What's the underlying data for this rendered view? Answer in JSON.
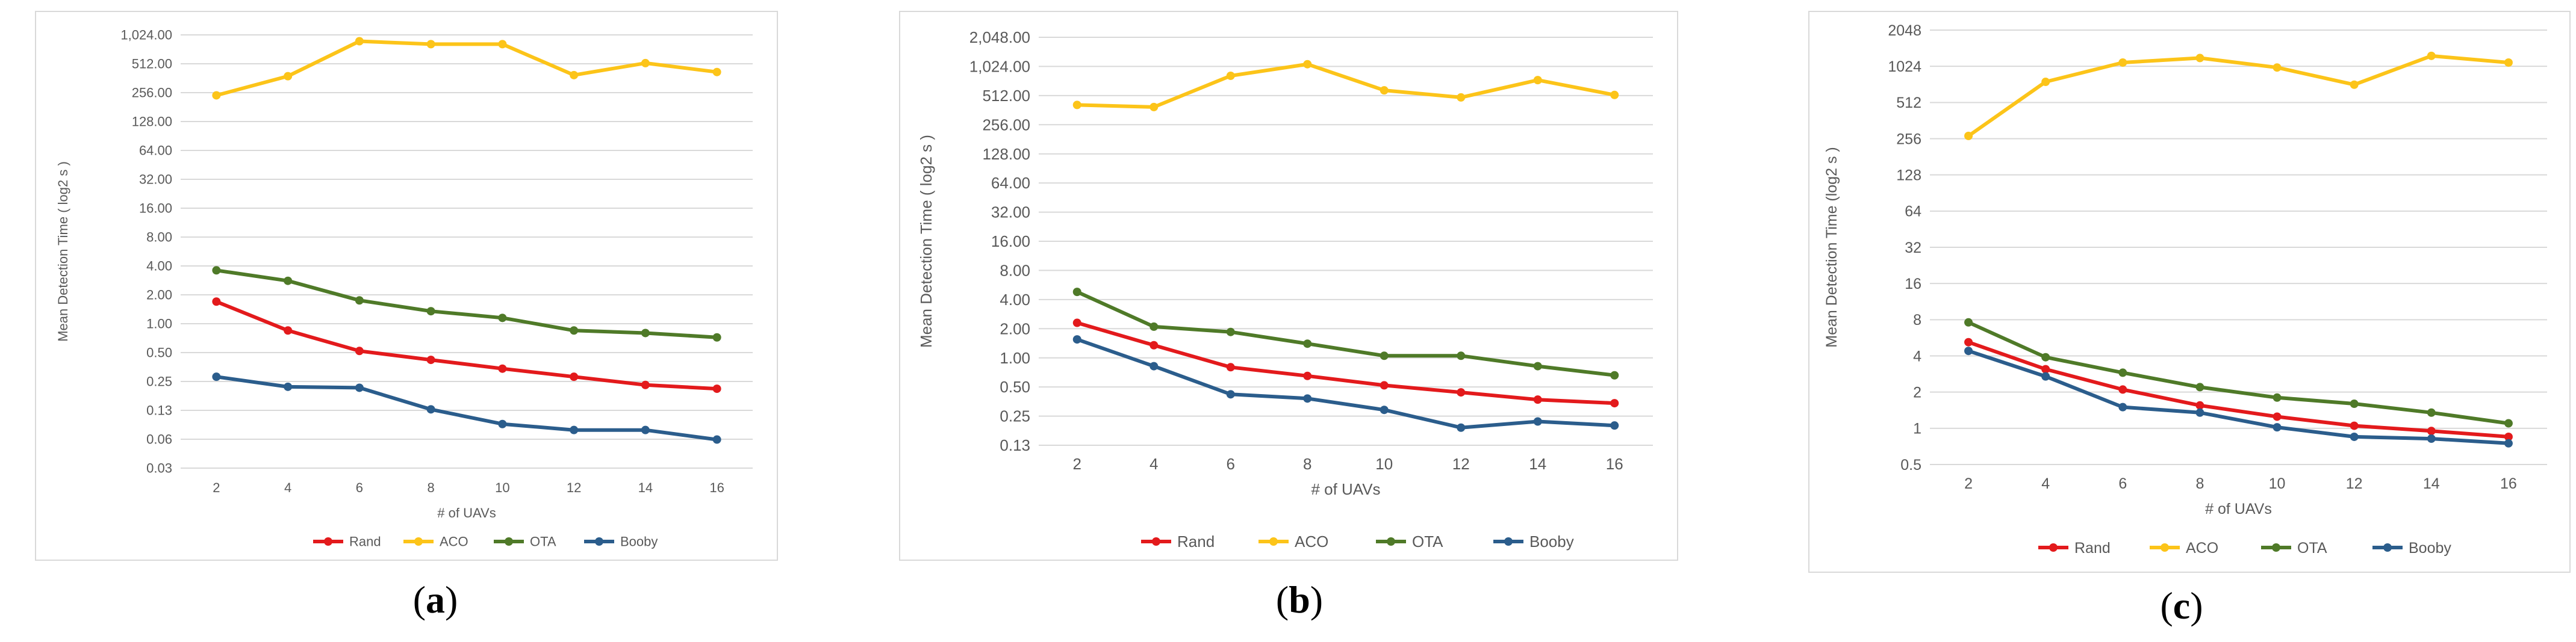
{
  "chart_data": [
    {
      "type": "line",
      "panel_label": "a",
      "ylabel": "Mean Detection Time ( log2 s )",
      "xlabel": "# of UAVs",
      "x": [
        2,
        4,
        6,
        8,
        10,
        12,
        14,
        16
      ],
      "ytick_labels": [
        "0.03",
        "0.06",
        "0.13",
        "0.25",
        "0.50",
        "1.00",
        "2.00",
        "4.00",
        "8.00",
        "16.00",
        "32.00",
        "64.00",
        "128.00",
        "256.00",
        "512.00",
        "1,024.00"
      ],
      "ytick_values": [
        0.03125,
        0.0625,
        0.125,
        0.25,
        0.5,
        1,
        2,
        4,
        8,
        16,
        32,
        64,
        128,
        256,
        512,
        1024
      ],
      "series": [
        {
          "name": "Rand",
          "color": "#e31a1c",
          "values": [
            1.7,
            0.85,
            0.52,
            0.42,
            0.34,
            0.28,
            0.23,
            0.21
          ]
        },
        {
          "name": "ACO",
          "color": "#fcc419",
          "values": [
            240,
            380,
            880,
            820,
            820,
            390,
            520,
            420
          ]
        },
        {
          "name": "OTA",
          "color": "#4f7a28",
          "values": [
            3.6,
            2.8,
            1.75,
            1.35,
            1.15,
            0.85,
            0.8,
            0.72
          ]
        },
        {
          "name": "Booby",
          "color": "#2b5d8c",
          "values": [
            0.28,
            0.22,
            0.215,
            0.128,
            0.09,
            0.078,
            0.078,
            0.062
          ]
        }
      ]
    },
    {
      "type": "line",
      "panel_label": "b",
      "ylabel": "Mean Detection Time ( log2 s )",
      "xlabel": "# of UAVs",
      "x": [
        2,
        4,
        6,
        8,
        10,
        12,
        14,
        16
      ],
      "ytick_labels": [
        "0.13",
        "0.25",
        "0.50",
        "1.00",
        "2.00",
        "4.00",
        "8.00",
        "16.00",
        "32.00",
        "64.00",
        "128.00",
        "256.00",
        "512.00",
        "1,024.00",
        "2,048.00"
      ],
      "ytick_values": [
        0.125,
        0.25,
        0.5,
        1,
        2,
        4,
        8,
        16,
        32,
        64,
        128,
        256,
        512,
        1024,
        2048
      ],
      "series": [
        {
          "name": "Rand",
          "color": "#e31a1c",
          "values": [
            2.3,
            1.35,
            0.8,
            0.65,
            0.52,
            0.44,
            0.37,
            0.34
          ]
        },
        {
          "name": "ACO",
          "color": "#fcc419",
          "values": [
            410,
            390,
            820,
            1080,
            580,
            490,
            740,
            520
          ]
        },
        {
          "name": "OTA",
          "color": "#4f7a28",
          "values": [
            4.8,
            2.1,
            1.85,
            1.4,
            1.05,
            1.05,
            0.82,
            0.66
          ]
        },
        {
          "name": "Booby",
          "color": "#2b5d8c",
          "values": [
            1.55,
            0.82,
            0.42,
            0.38,
            0.29,
            0.19,
            0.22,
            0.2
          ]
        }
      ]
    },
    {
      "type": "line",
      "panel_label": "c",
      "ylabel": "Mean Detection Time (log2 s )",
      "xlabel": "# of UAVs",
      "x": [
        2,
        4,
        6,
        8,
        10,
        12,
        14,
        16
      ],
      "ytick_labels": [
        "0.5",
        "1",
        "2",
        "4",
        "8",
        "16",
        "32",
        "64",
        "128",
        "256",
        "512",
        "1024",
        "2048"
      ],
      "ytick_values": [
        0.5,
        1,
        2,
        4,
        8,
        16,
        32,
        64,
        128,
        256,
        512,
        1024,
        2048
      ],
      "series": [
        {
          "name": "Rand",
          "color": "#e31a1c",
          "values": [
            5.2,
            3.1,
            2.1,
            1.55,
            1.25,
            1.05,
            0.95,
            0.85
          ]
        },
        {
          "name": "ACO",
          "color": "#fcc419",
          "values": [
            270,
            760,
            1100,
            1200,
            1000,
            720,
            1250,
            1100
          ]
        },
        {
          "name": "OTA",
          "color": "#4f7a28",
          "values": [
            7.6,
            3.9,
            2.9,
            2.2,
            1.8,
            1.6,
            1.35,
            1.1
          ]
        },
        {
          "name": "Booby",
          "color": "#2b5d8c",
          "values": [
            4.4,
            2.7,
            1.5,
            1.35,
            1.02,
            0.85,
            0.82,
            0.75
          ]
        }
      ]
    }
  ]
}
